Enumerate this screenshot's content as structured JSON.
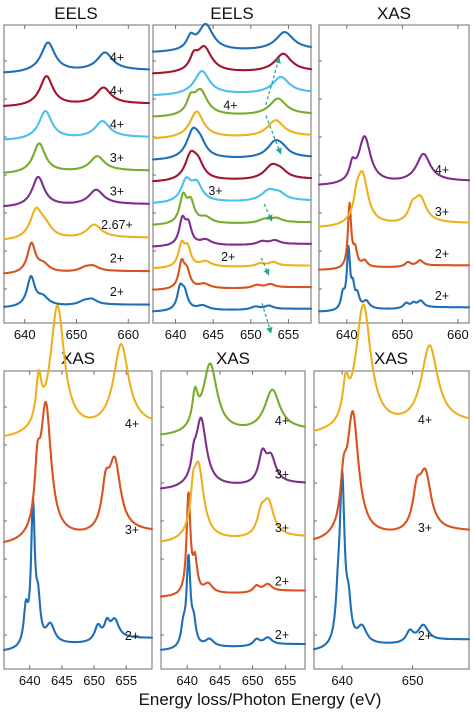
{
  "xlabel": "Energy loss/Photon Energy (eV)",
  "colors": {
    "blue": "#1f6fb8",
    "orange": "#d9531e",
    "yellow": "#edb120",
    "purple": "#7e2f8e",
    "green": "#77ac30",
    "cyan": "#4dbeee",
    "red": "#a2142f",
    "arrow": "#1fa98a"
  },
  "chart_data": [
    {
      "type": "line",
      "title": "EELS",
      "xlim": [
        636,
        664
      ],
      "ticks": [
        640,
        650,
        660
      ],
      "series": [
        {
          "label": "2+",
          "color": "blue",
          "peaks": [
            [
              641.2,
              1.0,
              0.9
            ],
            [
              643.5,
              0.28,
              1.3
            ],
            [
              651.5,
              0.13,
              1.4
            ],
            [
              653,
              0.16,
              1.2
            ]
          ]
        },
        {
          "label": "2+",
          "color": "orange",
          "peaks": [
            [
              641.3,
              1.0,
              0.95
            ],
            [
              643.6,
              0.25,
              1.3
            ],
            [
              651.8,
              0.14,
              1.5
            ],
            [
              653.3,
              0.14,
              1.3
            ]
          ]
        },
        {
          "label": "2.67+",
          "color": "yellow",
          "peaks": [
            [
              642.2,
              0.95,
              1.4
            ],
            [
              644,
              0.35,
              1.5
            ],
            [
              653.4,
              0.45,
              1.7
            ]
          ]
        },
        {
          "label": "3+",
          "color": "purple",
          "peaks": [
            [
              642.6,
              1.0,
              1.4
            ],
            [
              653.8,
              0.5,
              1.7
            ]
          ]
        },
        {
          "label": "3+",
          "color": "green",
          "peaks": [
            [
              642.8,
              1.0,
              1.4
            ],
            [
              654,
              0.5,
              1.7
            ]
          ]
        },
        {
          "label": "4+",
          "color": "cyan",
          "peaks": [
            [
              644,
              0.95,
              1.5
            ],
            [
              655,
              0.55,
              1.7
            ]
          ]
        },
        {
          "label": "4+",
          "color": "red",
          "peaks": [
            [
              644.2,
              1.0,
              1.5
            ],
            [
              655.2,
              0.55,
              1.7
            ]
          ]
        },
        {
          "label": "4+",
          "color": "blue",
          "peaks": [
            [
              644.5,
              1.0,
              1.6
            ],
            [
              655.5,
              0.6,
              1.8
            ]
          ]
        }
      ]
    },
    {
      "type": "line",
      "title": "EELS",
      "xlim": [
        637,
        658
      ],
      "ticks": [
        640,
        645,
        650,
        655
      ],
      "labels": [
        {
          "text": "4+",
          "x": 647.3,
          "row": 9.55
        },
        {
          "text": "3+",
          "x": 645.3,
          "row": 5.6
        },
        {
          "text": "2+",
          "x": 647,
          "row": 2.55
        }
      ],
      "series": [
        {
          "color": "blue",
          "peaks": [
            [
              640.6,
              0.7,
              0.45
            ],
            [
              641.2,
              0.55,
              0.5
            ],
            [
              643.6,
              0.15,
              0.9
            ],
            [
              650.6,
              0.1,
              0.7
            ],
            [
              652.4,
              0.12,
              0.7
            ]
          ]
        },
        {
          "color": "orange",
          "peaks": [
            [
              640.8,
              0.85,
              0.45
            ],
            [
              641.5,
              0.55,
              0.5
            ],
            [
              643.8,
              0.15,
              0.9
            ],
            [
              650.8,
              0.1,
              0.7
            ],
            [
              652.6,
              0.12,
              0.7
            ]
          ]
        },
        {
          "color": "yellow",
          "peaks": [
            [
              640.8,
              0.75,
              0.5
            ],
            [
              641.6,
              0.6,
              0.5
            ],
            [
              644,
              0.18,
              0.9
            ],
            [
              651.3,
              0.1,
              0.7
            ],
            [
              653,
              0.13,
              0.7
            ]
          ]
        },
        {
          "color": "purple",
          "peaks": [
            [
              640.9,
              0.85,
              0.5
            ],
            [
              641.7,
              0.65,
              0.5
            ],
            [
              644,
              0.18,
              0.9
            ],
            [
              651.5,
              0.11,
              0.8
            ],
            [
              653.2,
              0.13,
              0.8
            ]
          ]
        },
        {
          "color": "green",
          "peaks": [
            [
              641,
              0.9,
              0.55
            ],
            [
              642,
              0.7,
              0.6
            ],
            [
              644,
              0.2,
              0.9
            ],
            [
              651.8,
              0.12,
              0.9
            ],
            [
              653.4,
              0.15,
              0.9
            ]
          ]
        },
        {
          "color": "cyan",
          "peaks": [
            [
              641.4,
              0.7,
              0.8
            ],
            [
              642.8,
              0.6,
              0.9
            ],
            [
              652.4,
              0.35,
              1.2
            ],
            [
              653.8,
              0.2,
              1.0
            ]
          ]
        },
        {
          "color": "red",
          "peaks": [
            [
              642,
              0.8,
              0.9
            ],
            [
              643,
              0.5,
              0.9
            ],
            [
              652.8,
              0.45,
              1.2
            ],
            [
              654,
              0.2,
              1.0
            ]
          ]
        },
        {
          "color": "blue",
          "peaks": [
            [
              642.3,
              0.9,
              1.0
            ],
            [
              643.3,
              0.4,
              0.9
            ],
            [
              653.2,
              0.5,
              1.2
            ],
            [
              654.2,
              0.2,
              1.0
            ]
          ]
        },
        {
          "color": "yellow",
          "peaks": [
            [
              642.8,
              0.9,
              1.1
            ],
            [
              653.3,
              0.55,
              1.3
            ]
          ]
        },
        {
          "color": "green",
          "peaks": [
            [
              642,
              0.45,
              0.6
            ],
            [
              643.3,
              0.85,
              1.1
            ],
            [
              653.6,
              0.55,
              1.3
            ]
          ]
        },
        {
          "color": "cyan",
          "peaks": [
            [
              643.5,
              0.8,
              1.2
            ],
            [
              654,
              0.55,
              1.3
            ]
          ]
        },
        {
          "color": "red",
          "peaks": [
            [
              642.4,
              0.4,
              0.6
            ],
            [
              643.8,
              0.85,
              1.2
            ],
            [
              654.3,
              0.6,
              1.3
            ]
          ]
        },
        {
          "color": "blue",
          "peaks": [
            [
              642,
              0.4,
              0.6
            ],
            [
              644,
              0.9,
              1.2
            ],
            [
              654.5,
              0.6,
              1.4
            ]
          ]
        }
      ],
      "arrows": [
        {
          "from": [
            651.5,
            0.4
          ],
          "to": [
            652.7,
            -1.0
          ]
        },
        {
          "from": [
            651.4,
            2.5
          ],
          "to": [
            652.4,
            1.7
          ]
        },
        {
          "from": [
            651.8,
            5.0
          ],
          "to": [
            652.8,
            4.2
          ]
        },
        {
          "from": [
            652.0,
            9.1
          ],
          "to": [
            654.0,
            7.3
          ]
        },
        {
          "from": [
            652.0,
            9.6
          ],
          "to": [
            653.8,
            11.8
          ]
        }
      ]
    },
    {
      "type": "line",
      "title": "XAS",
      "xlim": [
        635,
        662
      ],
      "ticks": [
        640,
        650,
        660
      ],
      "series": [
        {
          "label": "2+",
          "color": "blue",
          "peaks": [
            [
              639.3,
              0.35,
              0.4
            ],
            [
              640.3,
              1.4,
              0.35
            ],
            [
              641.1,
              0.45,
              0.35
            ],
            [
              641.9,
              0.3,
              0.45
            ],
            [
              643.5,
              0.18,
              0.7
            ],
            [
              650.7,
              0.12,
              0.6
            ],
            [
              652,
              0.1,
              0.5
            ],
            [
              653.3,
              0.16,
              0.7
            ]
          ]
        },
        {
          "label": "2+",
          "color": "orange",
          "peaks": [
            [
              640.5,
              1.5,
              0.35
            ],
            [
              641.5,
              0.4,
              0.45
            ],
            [
              643.2,
              0.15,
              0.6
            ],
            [
              651,
              0.1,
              0.6
            ],
            [
              653.2,
              0.13,
              0.7
            ]
          ]
        },
        {
          "label": "3+",
          "color": "yellow",
          "peaks": [
            [
              641.8,
              0.35,
              0.6
            ],
            [
              642.8,
              1.2,
              1.2
            ],
            [
              651.8,
              0.28,
              0.8
            ],
            [
              653.2,
              0.6,
              1.3
            ]
          ]
        },
        {
          "label": "4+",
          "color": "purple",
          "peaks": [
            [
              641,
              0.35,
              0.6
            ],
            [
              643.2,
              1.1,
              1.3
            ],
            [
              653.8,
              0.65,
              1.5
            ]
          ]
        }
      ]
    },
    {
      "type": "line",
      "title": "XAS",
      "xlim": [
        636,
        659
      ],
      "ticks": [
        640,
        645,
        650,
        655
      ],
      "series": [
        {
          "label": "2+",
          "color": "blue",
          "peaks": [
            [
              639.4,
              0.28,
              0.4
            ],
            [
              640.5,
              1.1,
              0.35
            ],
            [
              641.3,
              0.3,
              0.4
            ],
            [
              643.2,
              0.15,
              0.8
            ],
            [
              650.6,
              0.12,
              0.6
            ],
            [
              652,
              0.12,
              0.5
            ],
            [
              653.2,
              0.15,
              0.8
            ]
          ]
        },
        {
          "label": "3+",
          "color": "orange",
          "peaks": [
            [
              641.2,
              0.4,
              0.5
            ],
            [
              642.5,
              1.05,
              1.0
            ],
            [
              651.8,
              0.3,
              0.7
            ],
            [
              653.2,
              0.55,
              1.1
            ]
          ]
        },
        {
          "label": "4+",
          "color": "yellow",
          "peaks": [
            [
              641.4,
              0.35,
              0.5
            ],
            [
              644.3,
              1.0,
              1.3
            ],
            [
              654.2,
              0.65,
              1.4
            ]
          ]
        }
      ]
    },
    {
      "type": "line",
      "title": "XAS",
      "xlim": [
        636,
        658
      ],
      "ticks": [
        640,
        645,
        650,
        655
      ],
      "series": [
        {
          "label": "2+",
          "color": "blue",
          "peaks": [
            [
              639.4,
              0.3,
              0.4
            ],
            [
              640.2,
              1.4,
              0.35
            ],
            [
              641,
              0.35,
              0.4
            ],
            [
              643.4,
              0.12,
              0.8
            ],
            [
              650.6,
              0.1,
              0.6
            ],
            [
              652.3,
              0.12,
              0.8
            ]
          ]
        },
        {
          "label": "2+",
          "color": "orange",
          "peaks": [
            [
              640.2,
              1.6,
              0.35
            ],
            [
              641.2,
              0.5,
              0.4
            ],
            [
              643.2,
              0.15,
              0.8
            ],
            [
              650.6,
              0.1,
              0.6
            ],
            [
              652.3,
              0.12,
              0.8
            ]
          ]
        },
        {
          "label": "3+",
          "color": "yellow",
          "peaks": [
            [
              640.9,
              0.4,
              0.4
            ],
            [
              641.7,
              1.2,
              1.0
            ],
            [
              651.3,
              0.3,
              0.7
            ],
            [
              652.4,
              0.55,
              1.0
            ]
          ]
        },
        {
          "label": "3+",
          "color": "purple",
          "peaks": [
            [
              641,
              0.25,
              0.4
            ],
            [
              642.1,
              1.1,
              1.0
            ],
            [
              651.5,
              0.45,
              0.7
            ],
            [
              652.8,
              0.4,
              0.9
            ]
          ]
        },
        {
          "label": "4+",
          "color": "green",
          "peaks": [
            [
              641.2,
              0.5,
              0.5
            ],
            [
              643.5,
              1.1,
              1.3
            ],
            [
              653,
              0.65,
              1.4
            ]
          ]
        }
      ]
    },
    {
      "type": "line",
      "title": "XAS",
      "xlim": [
        636,
        658
      ],
      "ticks": [
        640,
        650
      ],
      "series": [
        {
          "label": "2+",
          "color": "blue",
          "peaks": [
            [
              639.4,
              0.3,
              0.4
            ],
            [
              640,
              1.45,
              0.4
            ],
            [
              640.9,
              0.3,
              0.4
            ],
            [
              642.8,
              0.15,
              0.8
            ],
            [
              649.6,
              0.1,
              0.6
            ],
            [
              651.5,
              0.15,
              0.9
            ]
          ]
        },
        {
          "label": "3+",
          "color": "orange",
          "peaks": [
            [
              640.2,
              0.35,
              0.5
            ],
            [
              641.5,
              1.1,
              1.0
            ],
            [
              650.6,
              0.3,
              0.7
            ],
            [
              651.8,
              0.5,
              1.0
            ]
          ]
        },
        {
          "label": "4+",
          "color": "yellow",
          "peaks": [
            [
              640.5,
              0.3,
              0.5
            ],
            [
              643,
              1.1,
              1.3
            ],
            [
              652.4,
              0.7,
              1.4
            ]
          ]
        }
      ]
    }
  ]
}
